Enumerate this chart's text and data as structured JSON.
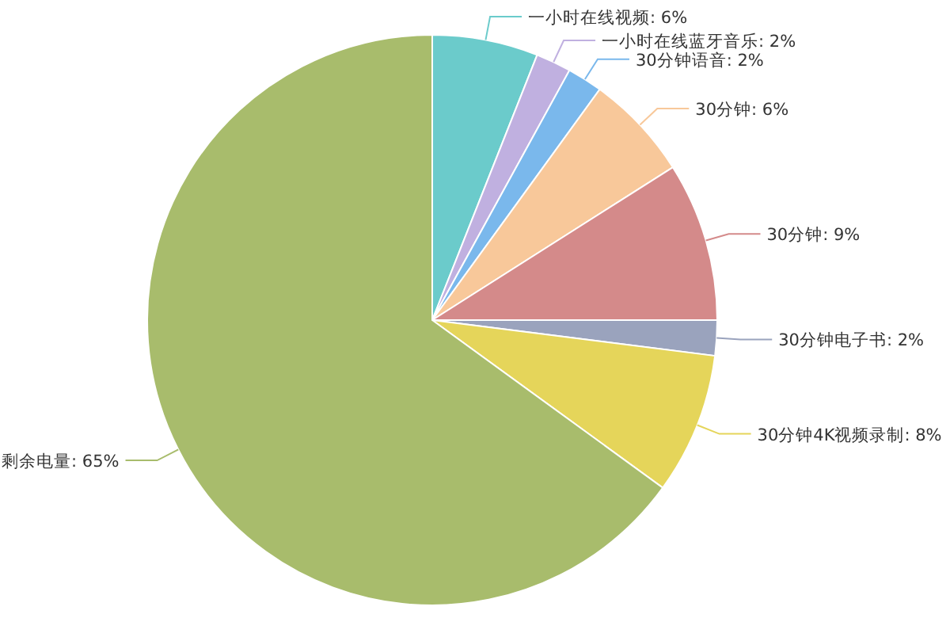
{
  "chart_data": {
    "type": "pie",
    "categories": [
      "一小时在线视频",
      "一小时在线蓝牙音乐",
      "30分钟语音",
      "30分钟",
      "30分钟",
      "30分钟电子书",
      "30分钟4K视频录制",
      "剩余电量"
    ],
    "values": [
      6,
      2,
      2,
      6,
      9,
      2,
      8,
      65
    ],
    "value_labels": [
      ": 6%",
      ": 2%",
      ": 2%",
      ": 6%",
      ": 9%",
      ": 2%",
      ": 8%",
      ": 65%"
    ],
    "colors": [
      "#6bcbcb",
      "#c0b0e0",
      "#7ab8ec",
      "#f8c89a",
      "#d48a8a",
      "#9aa3bd",
      "#e5d55a",
      "#a8bc6c"
    ]
  }
}
